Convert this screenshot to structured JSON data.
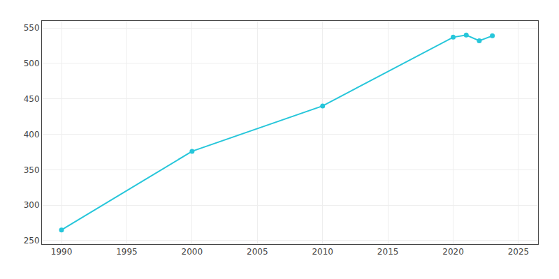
{
  "chart_data": {
    "type": "line",
    "x": [
      1990,
      2000,
      2010,
      2020,
      2021,
      2022,
      2023
    ],
    "values": [
      265,
      376,
      440,
      537,
      540,
      532,
      539
    ],
    "color": "#26C6DA",
    "marker": "circle",
    "xlim": [
      1988.5,
      2026.5
    ],
    "ylim": [
      245,
      560
    ],
    "xticks": [
      1990,
      1995,
      2000,
      2005,
      2010,
      2015,
      2020,
      2025
    ],
    "yticks": [
      250,
      300,
      350,
      400,
      450,
      500,
      550
    ],
    "grid": true
  }
}
